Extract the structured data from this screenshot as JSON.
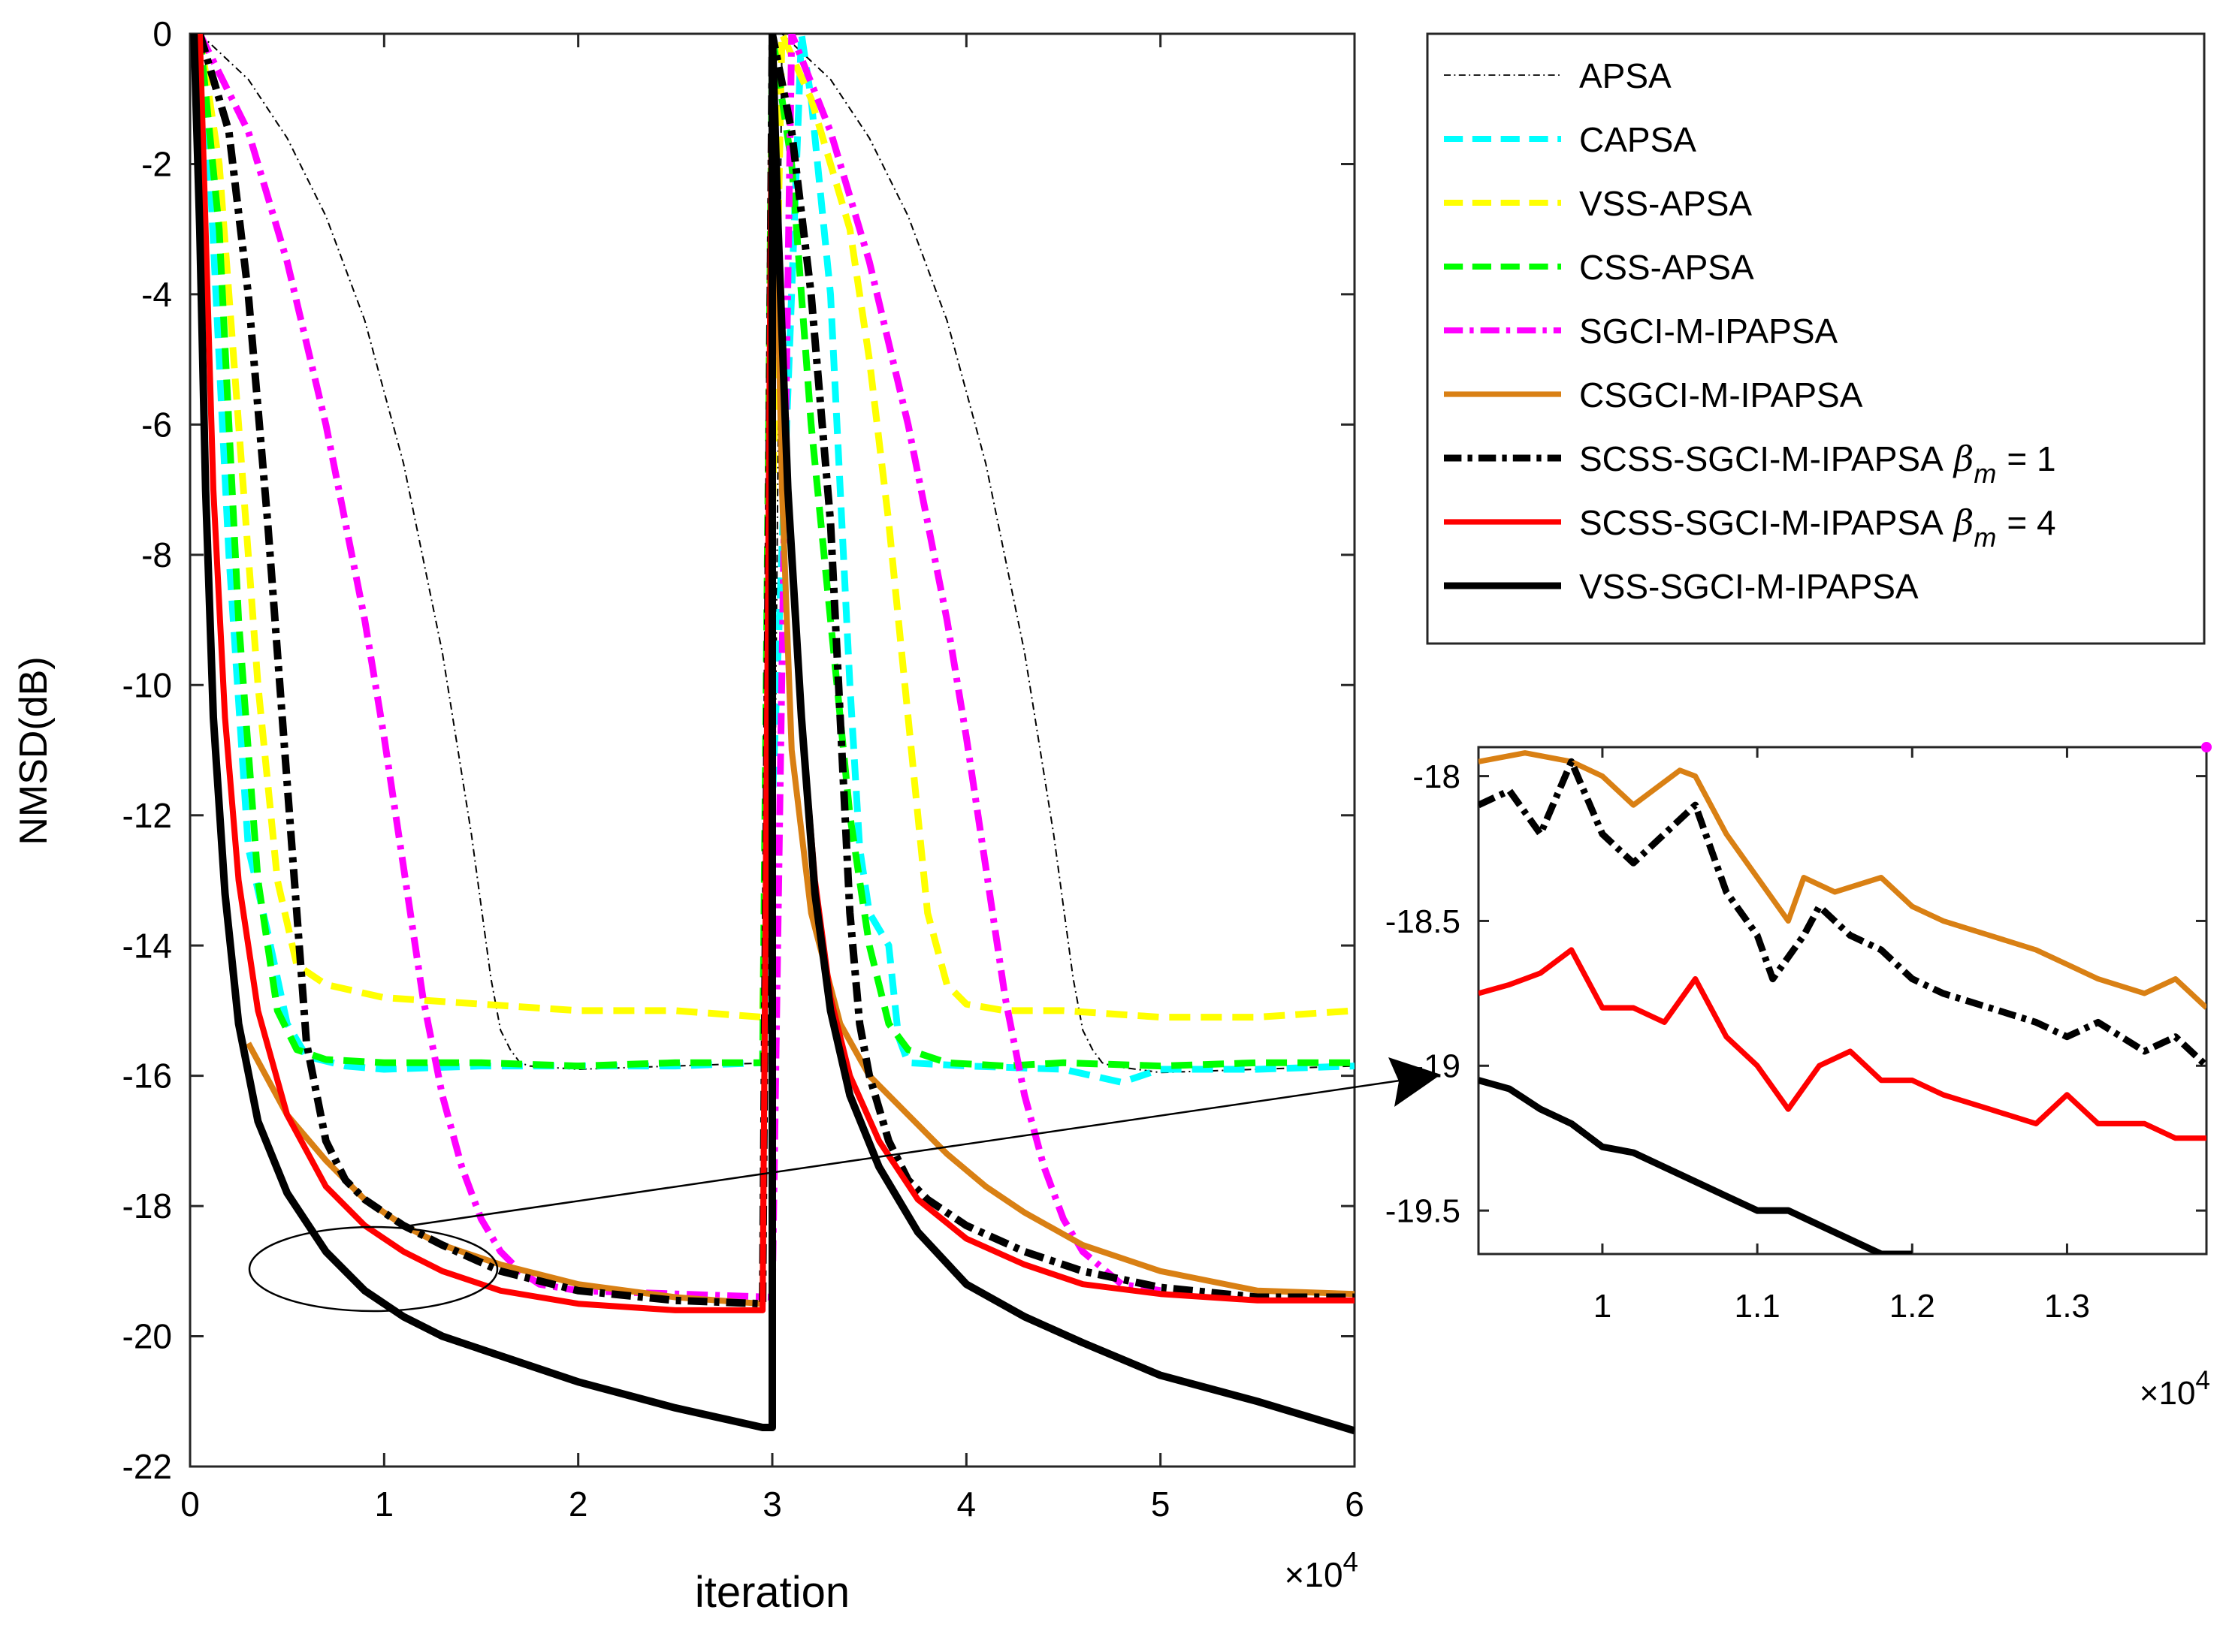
{
  "chart_data": [
    {
      "type": "line",
      "id": "main",
      "xlabel": "iteration",
      "ylabel": "NMSD(dB)",
      "x_multiplier": "×10",
      "x_multiplier_exp": "4",
      "xlim": [
        0,
        6
      ],
      "ylim": [
        -22,
        0
      ],
      "xticks": [
        0,
        1,
        2,
        3,
        4,
        5,
        6
      ],
      "xtick_labels": [
        "0",
        "1",
        "2",
        "3",
        "4",
        "5",
        "6"
      ],
      "yticks": [
        0,
        -2,
        -4,
        -6,
        -8,
        -10,
        -12,
        -14,
        -16,
        -18,
        -20,
        -22
      ],
      "ytick_labels": [
        "0",
        "-2",
        "-4",
        "-6",
        "-8",
        "-10",
        "-12",
        "-14",
        "-16",
        "-18",
        "-20",
        "-22"
      ],
      "annotation": "ellipse around x≈0.3–1.6, y≈-18.3 to -19.6 with arrow to the zoomed inset",
      "series": [
        {
          "name": "APSA",
          "color": "#000000",
          "style": "thin-dashdot",
          "x": [
            0.05,
            0.3,
            0.5,
            0.7,
            0.9,
            1.1,
            1.3,
            1.45,
            1.55,
            1.6,
            1.65,
            1.7,
            1.75,
            2.0,
            2.5,
            3.0,
            3.05,
            3.3,
            3.5,
            3.7,
            3.9,
            4.1,
            4.3,
            4.45,
            4.55,
            4.6,
            4.65,
            4.7,
            4.75,
            5.0,
            5.5,
            6.0
          ],
          "y": [
            0,
            -0.7,
            -1.6,
            -2.8,
            -4.4,
            -6.6,
            -9.5,
            -12.3,
            -14.5,
            -15.3,
            -15.6,
            -15.8,
            -15.85,
            -15.9,
            -15.85,
            -15.8,
            0,
            -0.7,
            -1.6,
            -2.8,
            -4.4,
            -6.6,
            -9.5,
            -12.3,
            -14.5,
            -15.3,
            -15.6,
            -15.8,
            -15.85,
            -15.95,
            -15.9,
            -15.85
          ]
        },
        {
          "name": "CAPSA",
          "color": "#00ffff",
          "style": "dash",
          "x": [
            0.05,
            0.1,
            0.2,
            0.3,
            0.4,
            0.5,
            0.6,
            0.8,
            1.0,
            1.5,
            2.0,
            2.5,
            2.95,
            3.15,
            3.2,
            3.3,
            3.35,
            3.4,
            3.45,
            3.5,
            3.6,
            3.65,
            3.7,
            4.0,
            4.5,
            4.8,
            5.0,
            5.5,
            6.0
          ],
          "y": [
            0,
            -2,
            -8,
            -12.5,
            -13.8,
            -15.2,
            -15.7,
            -15.85,
            -15.9,
            -15.85,
            -15.85,
            -15.85,
            -15.8,
            0,
            -1.0,
            -4,
            -7,
            -10,
            -12.5,
            -13.5,
            -14,
            -15.4,
            -15.8,
            -15.85,
            -15.9,
            -16.1,
            -15.9,
            -15.9,
            -15.85
          ]
        },
        {
          "name": "VSS-APSA",
          "color": "#ffff00",
          "style": "dash",
          "x": [
            0.05,
            0.15,
            0.25,
            0.35,
            0.45,
            0.55,
            0.7,
            1.0,
            1.5,
            2.0,
            2.5,
            2.95,
            3.05,
            3.2,
            3.4,
            3.5,
            3.6,
            3.7,
            3.8,
            3.9,
            4.0,
            4.2,
            4.5,
            5.0,
            5.5,
            6.0
          ],
          "y": [
            0,
            -2,
            -6,
            -10,
            -13,
            -14.3,
            -14.6,
            -14.8,
            -14.9,
            -15.0,
            -15.0,
            -15.1,
            0,
            -1,
            -3,
            -5,
            -7.5,
            -10.5,
            -13.5,
            -14.6,
            -14.9,
            -15.0,
            -15.0,
            -15.1,
            -15.1,
            -15.0
          ]
        },
        {
          "name": "CSS-APSA",
          "color": "#00ff00",
          "style": "dash",
          "x": [
            0.05,
            0.15,
            0.25,
            0.35,
            0.45,
            0.55,
            0.7,
            1.0,
            1.5,
            2.0,
            2.5,
            2.95,
            3.0,
            3.1,
            3.2,
            3.3,
            3.4,
            3.5,
            3.6,
            3.7,
            3.9,
            4.2,
            4.5,
            5.0,
            5.5,
            6.0
          ],
          "y": [
            0,
            -3,
            -9,
            -13,
            -15,
            -15.6,
            -15.75,
            -15.8,
            -15.8,
            -15.85,
            -15.8,
            -15.8,
            0,
            -2,
            -6,
            -9,
            -12,
            -14,
            -15.2,
            -15.6,
            -15.8,
            -15.85,
            -15.8,
            -15.85,
            -15.8,
            -15.8
          ]
        },
        {
          "name": "SGCI-M-IPAPSA",
          "color": "#ff00ff",
          "style": "dashdot",
          "x": [
            0.05,
            0.3,
            0.5,
            0.7,
            0.9,
            1.0,
            1.1,
            1.2,
            1.3,
            1.4,
            1.5,
            1.6,
            1.7,
            1.8,
            2.0,
            3.0,
            3.1,
            3.3,
            3.5,
            3.7,
            3.8,
            3.9,
            4.0,
            4.1,
            4.2,
            4.3,
            4.4,
            4.5,
            4.6,
            4.8,
            5.0
          ],
          "y": [
            0,
            -1.5,
            -3.5,
            -6,
            -9,
            -10.8,
            -12.8,
            -14.8,
            -16.3,
            -17.4,
            -18.2,
            -18.7,
            -19.0,
            -19.2,
            -19.3,
            -19.4,
            0,
            -1.5,
            -3.5,
            -6,
            -7.5,
            -9,
            -10.8,
            -12.8,
            -14.8,
            -16.3,
            -17.4,
            -18.2,
            -18.7,
            -19.2,
            -19.3
          ]
        },
        {
          "name": "CSGCI-M-IPAPSA",
          "color": "#d98014",
          "style": "solid",
          "x": [
            0.3,
            0.5,
            0.7,
            0.9,
            1.1,
            1.3,
            1.6,
            2.0,
            2.5,
            2.95,
            3.0,
            3.05,
            3.1,
            3.2,
            3.35,
            3.5,
            3.7,
            3.9,
            4.1,
            4.3,
            4.6,
            5.0,
            5.5,
            6.0
          ],
          "y": [
            -15.5,
            -16.6,
            -17.3,
            -17.9,
            -18.3,
            -18.6,
            -18.9,
            -19.2,
            -19.4,
            -19.5,
            0,
            -7,
            -11,
            -13.5,
            -15.2,
            -16.0,
            -16.6,
            -17.2,
            -17.7,
            -18.1,
            -18.6,
            -19.0,
            -19.3,
            -19.35
          ]
        },
        {
          "name": "SCSS-SGCI-M-IPAPSA β_m = 1",
          "color": "#000000",
          "style": "thick-dashdot",
          "x": [
            0.05,
            0.2,
            0.3,
            0.4,
            0.5,
            0.55,
            0.6,
            0.7,
            0.8,
            0.9,
            1.0,
            1.1,
            1.3,
            1.6,
            2.0,
            2.5,
            2.95,
            3.0,
            3.1,
            3.2,
            3.3,
            3.35,
            3.4,
            3.45,
            3.5,
            3.6,
            3.7,
            3.8,
            4.0,
            4.3,
            4.6,
            5.0,
            5.5,
            6.0
          ],
          "y": [
            0,
            -1.5,
            -4,
            -7.5,
            -11.5,
            -13.5,
            -15.5,
            -17.0,
            -17.6,
            -17.9,
            -18.1,
            -18.3,
            -18.6,
            -19.0,
            -19.3,
            -19.45,
            -19.5,
            0,
            -1.5,
            -4,
            -7.5,
            -10.5,
            -13.5,
            -15.2,
            -16.0,
            -17.0,
            -17.6,
            -17.9,
            -18.3,
            -18.7,
            -19.0,
            -19.25,
            -19.4,
            -19.4
          ]
        },
        {
          "name": "SCSS-SGCI-M-IPAPSA β_m = 4",
          "color": "#ff0000",
          "style": "solid",
          "x": [
            0.05,
            0.08,
            0.12,
            0.18,
            0.25,
            0.35,
            0.5,
            0.7,
            0.9,
            1.1,
            1.3,
            1.6,
            2.0,
            2.5,
            2.95,
            3.0,
            3.03,
            3.08,
            3.15,
            3.22,
            3.3,
            3.4,
            3.55,
            3.75,
            4.0,
            4.3,
            4.6,
            5.0,
            5.5,
            6.0
          ],
          "y": [
            0,
            -3,
            -7,
            -10.5,
            -13.0,
            -15.0,
            -16.6,
            -17.7,
            -18.3,
            -18.7,
            -19.0,
            -19.3,
            -19.5,
            -19.6,
            -19.6,
            0,
            -3,
            -7,
            -10.5,
            -13.0,
            -14.8,
            -16.0,
            -17.0,
            -17.9,
            -18.5,
            -18.9,
            -19.2,
            -19.35,
            -19.45,
            -19.45
          ]
        },
        {
          "name": "VSS-SGCI-M-IPAPSA",
          "color": "#000000",
          "style": "thick-solid",
          "x": [
            0.02,
            0.05,
            0.08,
            0.12,
            0.18,
            0.25,
            0.35,
            0.5,
            0.7,
            0.9,
            1.1,
            1.3,
            1.6,
            2.0,
            2.5,
            2.95,
            3.0,
            3.0,
            3.03,
            3.08,
            3.15,
            3.22,
            3.3,
            3.4,
            3.55,
            3.75,
            4.0,
            4.3,
            4.6,
            5.0,
            5.5,
            6.0
          ],
          "y": [
            0,
            -3,
            -7,
            -10.5,
            -13.2,
            -15.2,
            -16.7,
            -17.8,
            -18.7,
            -19.3,
            -19.7,
            -20.0,
            -20.3,
            -20.7,
            -21.1,
            -21.4,
            -21.4,
            0,
            -3,
            -7,
            -10.5,
            -13.2,
            -15.0,
            -16.3,
            -17.4,
            -18.4,
            -19.2,
            -19.7,
            -20.1,
            -20.6,
            -21.0,
            -21.45
          ]
        }
      ]
    },
    {
      "type": "line",
      "id": "inset",
      "x_multiplier": "×10",
      "x_multiplier_exp": "4",
      "xlim": [
        0.92,
        1.39
      ],
      "ylim": [
        -19.65,
        -17.9
      ],
      "xticks": [
        1.0,
        1.1,
        1.2,
        1.3
      ],
      "xtick_labels": [
        "1",
        "1.1",
        "1.2",
        "1.3"
      ],
      "yticks": [
        -18,
        -18.5,
        -19,
        -19.5
      ],
      "ytick_labels": [
        "-18",
        "-18.5",
        "-19",
        "-19.5"
      ],
      "series": [
        {
          "name": "CSGCI-M-IPAPSA",
          "color": "#d98014",
          "style": "solid",
          "x": [
            0.92,
            0.95,
            0.98,
            1.0,
            1.02,
            1.05,
            1.06,
            1.08,
            1.1,
            1.12,
            1.13,
            1.15,
            1.18,
            1.2,
            1.22,
            1.25,
            1.28,
            1.3,
            1.32,
            1.35,
            1.37,
            1.39
          ],
          "y": [
            -17.95,
            -17.92,
            -17.95,
            -18.0,
            -18.1,
            -17.98,
            -18.0,
            -18.2,
            -18.35,
            -18.5,
            -18.35,
            -18.4,
            -18.35,
            -18.45,
            -18.5,
            -18.55,
            -18.6,
            -18.65,
            -18.7,
            -18.75,
            -18.7,
            -18.8
          ]
        },
        {
          "name": "SCSS-SGCI-M-IPAPSA β_m = 1",
          "color": "#000000",
          "style": "thick-dashdot",
          "x": [
            0.92,
            0.94,
            0.96,
            0.98,
            1.0,
            1.02,
            1.04,
            1.06,
            1.08,
            1.1,
            1.11,
            1.13,
            1.14,
            1.16,
            1.18,
            1.2,
            1.22,
            1.25,
            1.28,
            1.3,
            1.32,
            1.35,
            1.37,
            1.39
          ],
          "y": [
            -18.1,
            -18.05,
            -18.2,
            -17.95,
            -18.2,
            -18.3,
            -18.2,
            -18.1,
            -18.4,
            -18.55,
            -18.7,
            -18.55,
            -18.45,
            -18.55,
            -18.6,
            -18.7,
            -18.75,
            -18.8,
            -18.85,
            -18.9,
            -18.85,
            -18.95,
            -18.9,
            -19.0
          ]
        },
        {
          "name": "SCSS-SGCI-M-IPAPSA β_m = 4",
          "color": "#ff0000",
          "style": "solid",
          "x": [
            0.92,
            0.94,
            0.96,
            0.98,
            1.0,
            1.02,
            1.04,
            1.06,
            1.08,
            1.1,
            1.12,
            1.14,
            1.16,
            1.18,
            1.2,
            1.22,
            1.25,
            1.28,
            1.3,
            1.32,
            1.35,
            1.37,
            1.39
          ],
          "y": [
            -18.75,
            -18.72,
            -18.68,
            -18.6,
            -18.8,
            -18.8,
            -18.85,
            -18.7,
            -18.9,
            -19.0,
            -19.15,
            -19.0,
            -18.95,
            -19.05,
            -19.05,
            -19.1,
            -19.15,
            -19.2,
            -19.1,
            -19.2,
            -19.2,
            -19.25,
            -19.25
          ]
        },
        {
          "name": "VSS-SGCI-M-IPAPSA",
          "color": "#000000",
          "style": "thick-solid",
          "x": [
            0.92,
            0.94,
            0.96,
            0.98,
            1.0,
            1.02,
            1.04,
            1.06,
            1.08,
            1.1,
            1.12,
            1.14,
            1.16,
            1.18,
            1.2
          ],
          "y": [
            -19.05,
            -19.08,
            -19.15,
            -19.2,
            -19.28,
            -19.3,
            -19.35,
            -19.4,
            -19.45,
            -19.5,
            -19.5,
            -19.55,
            -19.6,
            -19.65,
            -19.65
          ]
        },
        {
          "name": "SGCI-M-IPAPSA",
          "color": "#ff00ff",
          "style": "point",
          "x": [
            1.39
          ],
          "y": [
            -17.9
          ]
        }
      ]
    }
  ],
  "legend": {
    "placement": "top-right",
    "entries": [
      {
        "text": "APSA",
        "color": "#000000",
        "style": "thin-dashdot"
      },
      {
        "text": "CAPSA",
        "color": "#00ffff",
        "style": "dash"
      },
      {
        "text": "VSS-APSA",
        "color": "#ffff00",
        "style": "dash"
      },
      {
        "text": "CSS-APSA",
        "color": "#00ff00",
        "style": "dash"
      },
      {
        "text": "SGCI-M-IPAPSA",
        "color": "#ff00ff",
        "style": "dashdot"
      },
      {
        "text": "CSGCI-M-IPAPSA",
        "color": "#d98014",
        "style": "solid"
      },
      {
        "text": "SCSS-SGCI-M-IPAPSA",
        "suffix": "= 1",
        "beta": "β",
        "beta_sub": "m",
        "color": "#000000",
        "style": "thick-dashdot"
      },
      {
        "text": "SCSS-SGCI-M-IPAPSA",
        "suffix": "= 4",
        "beta": "β",
        "beta_sub": "m",
        "color": "#ff0000",
        "style": "solid"
      },
      {
        "text": "VSS-SGCI-M-IPAPSA",
        "color": "#000000",
        "style": "thick-solid"
      }
    ]
  }
}
